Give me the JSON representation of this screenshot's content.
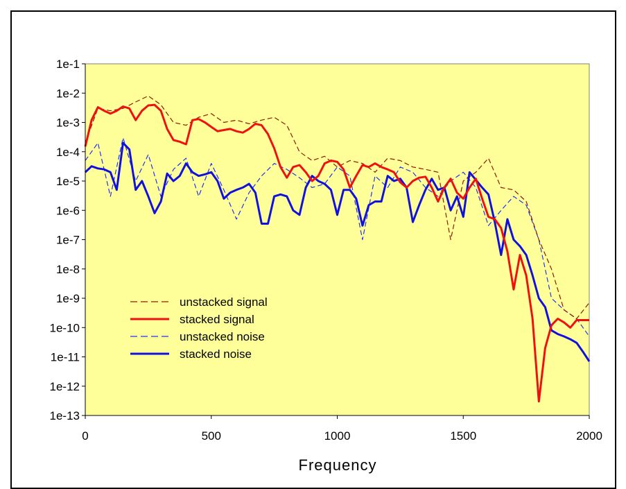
{
  "chart_data": {
    "type": "line",
    "title": "",
    "xlabel": "Frequency",
    "ylabel": "",
    "xlim": [
      0,
      2000
    ],
    "ylim_log10": [
      -13,
      -1
    ],
    "y_scale": "log",
    "x_ticks": [
      0,
      500,
      1000,
      1500,
      2000
    ],
    "x_tick_labels": [
      "0",
      "500",
      "1000",
      "1500",
      "2000"
    ],
    "y_ticks_log10": [
      -1,
      -2,
      -3,
      -4,
      -5,
      -6,
      -7,
      -8,
      -9,
      -10,
      -11,
      -12,
      -13
    ],
    "y_tick_labels": [
      "1e-1",
      "1e-2",
      "1e-3",
      "1e-4",
      "1e-5",
      "1e-6",
      "1e-7",
      "1e-8",
      "1e-9",
      "1e-10",
      "1e-11",
      "1e-12",
      "1e-13"
    ],
    "plot_background": "#FFFF99",
    "grid": false,
    "legend_position": "lower-left",
    "legend": [
      {
        "label": "unstacked signal",
        "color": "#8B1A00",
        "style": "dashed"
      },
      {
        "label": "stacked signal",
        "color": "#EE1111",
        "style": "solid-thick"
      },
      {
        "label": "unstacked noise",
        "color": "#2233EE",
        "style": "dashed"
      },
      {
        "label": "stacked noise",
        "color": "#1111DD",
        "style": "solid-thick"
      }
    ],
    "series": [
      {
        "name": "unstacked signal",
        "color": "#8B1A00",
        "style": "dashed",
        "x": [
          0,
          50,
          100,
          150,
          200,
          250,
          300,
          350,
          400,
          450,
          500,
          550,
          600,
          650,
          700,
          750,
          800,
          850,
          900,
          950,
          1000,
          1050,
          1100,
          1150,
          1200,
          1250,
          1300,
          1350,
          1400,
          1450,
          1500,
          1550,
          1600,
          1650,
          1700,
          1750,
          1800,
          1850,
          1900,
          1950,
          2000
        ],
        "y": [
          0.0002,
          0.003,
          0.0025,
          0.003,
          0.005,
          0.008,
          0.004,
          0.001,
          0.0008,
          0.0015,
          0.002,
          0.001,
          0.0012,
          0.0009,
          0.0012,
          0.0015,
          0.0008,
          0.0001,
          5e-05,
          7e-05,
          3e-05,
          5e-05,
          4e-05,
          2e-05,
          6e-05,
          5e-05,
          3e-05,
          2.5e-05,
          2e-05,
          1e-07,
          1e-05,
          2e-05,
          6e-05,
          6e-06,
          5e-06,
          2e-06,
          1e-07,
          1e-08,
          4e-10,
          2e-10,
          7e-10
        ]
      },
      {
        "name": "stacked signal",
        "color": "#EE1111",
        "style": "solid",
        "x": [
          0,
          25,
          50,
          75,
          100,
          125,
          150,
          175,
          200,
          225,
          250,
          275,
          300,
          325,
          350,
          375,
          400,
          425,
          450,
          475,
          500,
          525,
          550,
          575,
          600,
          625,
          650,
          675,
          700,
          725,
          750,
          775,
          800,
          825,
          850,
          875,
          900,
          925,
          950,
          975,
          1000,
          1025,
          1050,
          1075,
          1100,
          1125,
          1150,
          1175,
          1200,
          1225,
          1250,
          1275,
          1300,
          1325,
          1350,
          1375,
          1400,
          1425,
          1450,
          1475,
          1500,
          1525,
          1550,
          1575,
          1600,
          1625,
          1650,
          1675,
          1700,
          1725,
          1750,
          1775,
          1800,
          1825,
          1850,
          1875,
          1900,
          1925,
          1950,
          1975,
          2000
        ],
        "y": [
          0.00015,
          0.0012,
          0.0033,
          0.0025,
          0.002,
          0.0025,
          0.0035,
          0.003,
          0.0012,
          0.0025,
          0.0038,
          0.004,
          0.0025,
          0.0006,
          0.00025,
          0.00022,
          0.00018,
          0.0012,
          0.0013,
          0.001,
          0.0007,
          0.0005,
          0.00055,
          0.0006,
          0.0005,
          0.00045,
          0.0006,
          0.0009,
          0.0008,
          0.0004,
          0.00013,
          3e-05,
          1.3e-05,
          3e-05,
          3.5e-05,
          2e-05,
          1e-05,
          1.5e-05,
          4e-05,
          5e-05,
          4.5e-05,
          2.5e-05,
          6e-06,
          1.5e-05,
          3.5e-05,
          3e-05,
          4e-05,
          3e-05,
          2.5e-05,
          2e-05,
          9e-06,
          6e-06,
          1e-05,
          1.3e-05,
          1.4e-05,
          6e-06,
          2e-06,
          6e-06,
          1.2e-05,
          4e-06,
          2.5e-06,
          6e-06,
          1.2e-05,
          2.5e-06,
          6e-07,
          5e-07,
          2.5e-07,
          4e-08,
          2e-09,
          3e-08,
          6e-09,
          2e-10,
          3e-13,
          2e-11,
          1.2e-10,
          2e-10,
          1.5e-10,
          1e-10,
          1.8e-10,
          1.8e-10,
          1.8e-10
        ]
      },
      {
        "name": "unstacked noise",
        "color": "#2233EE",
        "style": "dashed",
        "x": [
          0,
          50,
          100,
          150,
          200,
          250,
          300,
          350,
          400,
          450,
          500,
          550,
          600,
          650,
          700,
          750,
          800,
          850,
          900,
          950,
          1000,
          1050,
          1100,
          1150,
          1200,
          1250,
          1300,
          1350,
          1400,
          1450,
          1500,
          1550,
          1600,
          1650,
          1700,
          1750,
          1800,
          1850,
          1900,
          1950,
          2000
        ],
        "y": [
          5e-05,
          0.0002,
          3e-06,
          0.0003,
          1e-05,
          8e-05,
          3e-06,
          2.5e-05,
          6e-05,
          3e-06,
          4e-05,
          5e-06,
          5e-07,
          4e-06,
          1.5e-05,
          4e-05,
          2.5e-05,
          1.3e-05,
          6e-06,
          8e-06,
          3e-05,
          1.5e-05,
          1e-07,
          1.5e-05,
          6e-06,
          3e-05,
          2e-05,
          6e-06,
          3e-06,
          1e-05,
          2e-05,
          6e-06,
          3e-07,
          1e-06,
          3e-06,
          1.5e-06,
          1e-07,
          1e-09,
          4e-10,
          2e-10,
          5e-11
        ]
      },
      {
        "name": "stacked noise",
        "color": "#1111DD",
        "style": "solid",
        "x": [
          0,
          25,
          50,
          75,
          100,
          125,
          150,
          175,
          200,
          225,
          250,
          275,
          300,
          325,
          350,
          375,
          400,
          425,
          450,
          475,
          500,
          525,
          550,
          575,
          600,
          625,
          650,
          675,
          700,
          725,
          750,
          775,
          800,
          825,
          850,
          875,
          900,
          925,
          950,
          975,
          1000,
          1025,
          1050,
          1075,
          1100,
          1125,
          1150,
          1175,
          1200,
          1225,
          1250,
          1275,
          1300,
          1325,
          1350,
          1375,
          1400,
          1425,
          1450,
          1475,
          1500,
          1525,
          1550,
          1575,
          1600,
          1625,
          1650,
          1675,
          1700,
          1725,
          1750,
          1775,
          1800,
          1825,
          1850,
          1875,
          1900,
          1925,
          1950,
          1975,
          2000
        ],
        "y": [
          2e-05,
          3.2e-05,
          2.7e-05,
          2.5e-05,
          2e-05,
          5e-06,
          0.0002,
          0.00012,
          5e-06,
          1e-05,
          3e-06,
          8e-07,
          2e-06,
          1.8e-05,
          1e-05,
          1.5e-05,
          4e-05,
          2e-05,
          1.5e-05,
          1.7e-05,
          2e-05,
          1e-05,
          2.5e-06,
          4e-06,
          5e-06,
          6e-06,
          8e-06,
          4e-06,
          3.5e-07,
          3.5e-07,
          3e-06,
          3.5e-06,
          3e-06,
          1e-06,
          7e-07,
          6e-06,
          1.5e-05,
          1e-05,
          8e-06,
          5e-06,
          7e-07,
          5e-06,
          5e-06,
          2.5e-06,
          3e-07,
          1.5e-06,
          2e-06,
          2e-06,
          1.5e-05,
          1e-05,
          1.2e-05,
          6e-06,
          4e-07,
          1.5e-06,
          5e-06,
          1.2e-05,
          5e-06,
          6e-06,
          1e-06,
          3e-06,
          6e-07,
          2e-05,
          1.1e-05,
          6e-06,
          3.5e-06,
          4e-07,
          3e-08,
          5e-07,
          1e-07,
          6e-08,
          3e-08,
          6e-09,
          1e-09,
          5e-10,
          8e-11,
          6e-11,
          5e-11,
          4e-11,
          3e-11,
          1.5e-11,
          7e-12
        ]
      }
    ]
  }
}
